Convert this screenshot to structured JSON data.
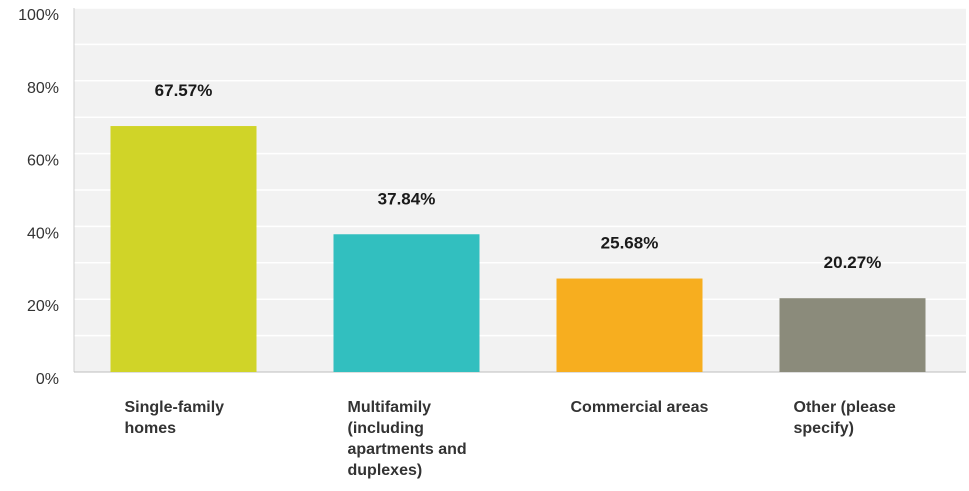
{
  "chart_data": {
    "type": "bar",
    "categories": [
      "Single-family homes",
      "Multifamily (including apartments and duplexes)",
      "Commercial areas",
      "Other (please specify)"
    ],
    "values": [
      67.57,
      37.84,
      25.68,
      20.27
    ],
    "data_labels": [
      "67.57%",
      "37.84%",
      "25.68%",
      "20.27%"
    ],
    "colors": [
      "#d0d428",
      "#32bfbf",
      "#f7ae1f",
      "#8b8b7b"
    ],
    "y_ticks": [
      "0%",
      "20%",
      "40%",
      "60%",
      "80%",
      "100%"
    ],
    "ylim": [
      0,
      100
    ],
    "grid": true,
    "background": "#f2f2f2"
  }
}
